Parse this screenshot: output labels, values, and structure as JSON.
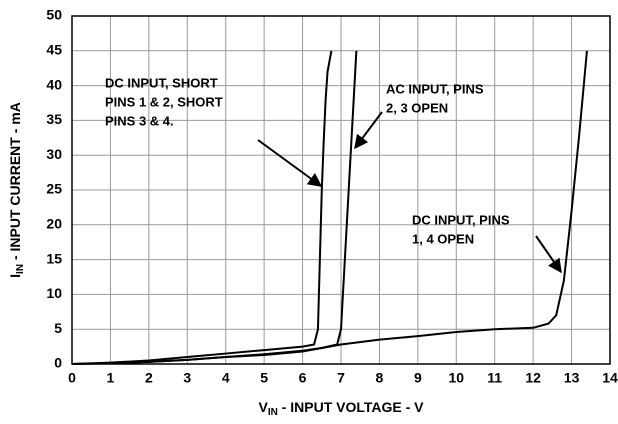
{
  "chart_data": {
    "type": "line",
    "xlabel": {
      "main": "V",
      "sub": "IN",
      "rest": " - INPUT VOLTAGE - V"
    },
    "ylabel": {
      "main": "I",
      "sub": "IN",
      "rest": " - INPUT CURRENT - mA"
    },
    "xlim": [
      0,
      14
    ],
    "xticks": [
      0,
      1,
      2,
      3,
      4,
      5,
      6,
      7,
      8,
      9,
      10,
      11,
      12,
      13,
      14
    ],
    "ylim": [
      0,
      50
    ],
    "yticks": [
      0,
      5,
      10,
      15,
      20,
      25,
      30,
      35,
      40,
      45,
      50
    ],
    "grid": true,
    "series": [
      {
        "color": "#000000",
        "x": [
          0,
          1,
          2,
          3,
          4,
          5,
          6,
          6.3,
          6.4,
          6.45,
          6.5,
          6.55,
          6.6,
          6.65,
          6.75
        ],
        "values": [
          0,
          0.2,
          0.5,
          1,
          1.5,
          2,
          2.5,
          2.8,
          5,
          15,
          25,
          32,
          38,
          42,
          45
        ]
      },
      {
        "color": "#000000",
        "x": [
          0,
          1,
          2,
          3,
          4,
          5,
          6,
          6.5,
          6.9,
          7.0,
          7.1,
          7.2,
          7.3,
          7.4
        ],
        "values": [
          0,
          0.1,
          0.3,
          0.6,
          1,
          1.4,
          1.9,
          2.3,
          2.8,
          5,
          15,
          25,
          35,
          45
        ]
      },
      {
        "color": "#000000",
        "x": [
          0,
          1,
          2,
          3,
          4,
          5,
          6,
          7,
          8,
          9,
          10,
          11,
          12,
          12.4,
          12.6,
          12.8,
          13,
          13.2,
          13.4
        ],
        "values": [
          0,
          0.1,
          0.3,
          0.6,
          1,
          1.3,
          1.8,
          2.8,
          3.5,
          4,
          4.6,
          5,
          5.2,
          5.8,
          7,
          12,
          22,
          33,
          45
        ]
      }
    ],
    "annotations": [
      {
        "lines": [
          "DC INPUT, SHORT",
          "PINS 1 & 2, SHORT",
          "PINS 3 & 4."
        ]
      },
      {
        "lines": [
          "AC INPUT, PINS",
          "2, 3 OPEN"
        ]
      },
      {
        "lines": [
          "DC INPUT, PINS",
          "1, 4 OPEN"
        ]
      }
    ]
  }
}
